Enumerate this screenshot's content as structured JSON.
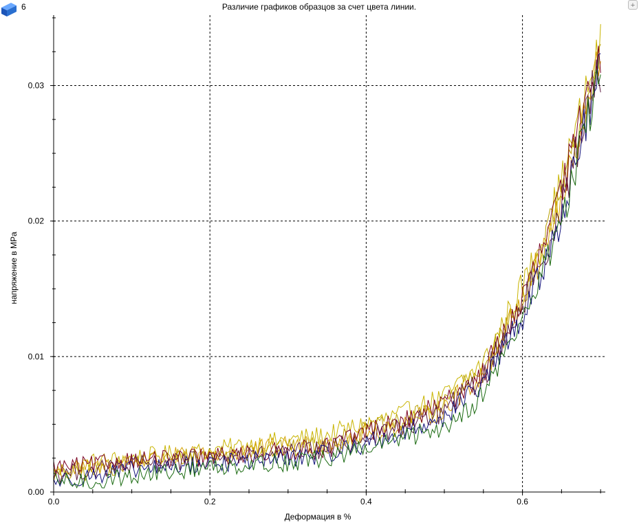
{
  "window": {
    "badge": "6",
    "zoom_button_symbol": "+",
    "corner_icon_name": "blue-cube-icon"
  },
  "colors": {
    "background": "#ffffff",
    "axis": "#000000",
    "grid": "#000000",
    "icon_blue": "#2a6fd0"
  },
  "chart_data": {
    "type": "line",
    "title": "Различие графиков образцов за счет цвета линии.",
    "xlabel": "Деформация в %",
    "ylabel": "напряжение в MPa",
    "xlim": [
      0,
      0.706
    ],
    "ylim": [
      0,
      0.0352
    ],
    "grid": true,
    "legend": "none",
    "x_ticks": [
      0.0,
      0.2,
      0.4,
      0.6
    ],
    "x_tick_labels": [
      "0.0",
      "0.2",
      "0.4",
      "0.6"
    ],
    "x_minor_step": 0.05,
    "y_ticks": [
      0.0,
      0.01,
      0.02,
      0.03
    ],
    "y_tick_labels": [
      "0.00",
      "0.01",
      "0.02",
      "0.03"
    ],
    "y_minor_step": 0.0025,
    "series": [
      {
        "color": "#c8b400",
        "x": [
          0.0,
          0.05,
          0.1,
          0.15,
          0.2,
          0.25,
          0.3,
          0.35,
          0.4,
          0.45,
          0.5,
          0.55,
          0.6,
          0.625,
          0.65,
          0.67,
          0.68,
          0.69,
          0.7
        ],
        "y": [
          0.0015,
          0.0022,
          0.0025,
          0.0028,
          0.003,
          0.0035,
          0.0038,
          0.0042,
          0.005,
          0.0058,
          0.007,
          0.0095,
          0.0152,
          0.0185,
          0.0228,
          0.027,
          0.029,
          0.031,
          0.0328
        ]
      },
      {
        "color": "#b8a000",
        "x": [
          0.0,
          0.05,
          0.1,
          0.15,
          0.2,
          0.25,
          0.3,
          0.35,
          0.4,
          0.45,
          0.5,
          0.55,
          0.6,
          0.625,
          0.65,
          0.67,
          0.68,
          0.69,
          0.7
        ],
        "y": [
          0.0012,
          0.0015,
          0.0022,
          0.0025,
          0.0028,
          0.003,
          0.0032,
          0.0035,
          0.0045,
          0.0052,
          0.0065,
          0.009,
          0.0145,
          0.018,
          0.022,
          0.026,
          0.0285,
          0.0305,
          0.0322
        ]
      },
      {
        "color": "#d4a000",
        "x": [
          0.0,
          0.05,
          0.1,
          0.15,
          0.2,
          0.25,
          0.3,
          0.35,
          0.4,
          0.45,
          0.5,
          0.55,
          0.6,
          0.625,
          0.65,
          0.67,
          0.68,
          0.69,
          0.7
        ],
        "y": [
          0.0014,
          0.0018,
          0.0023,
          0.0026,
          0.0027,
          0.0031,
          0.0034,
          0.0036,
          0.0043,
          0.005,
          0.0062,
          0.0088,
          0.0142,
          0.0176,
          0.0215,
          0.0255,
          0.028,
          0.0302,
          0.0318
        ]
      },
      {
        "color": "#7a0020",
        "x": [
          0.0,
          0.05,
          0.1,
          0.15,
          0.2,
          0.25,
          0.3,
          0.35,
          0.4,
          0.45,
          0.5,
          0.55,
          0.6,
          0.625,
          0.65,
          0.67,
          0.68,
          0.69,
          0.7
        ],
        "y": [
          0.0018,
          0.002,
          0.0024,
          0.0024,
          0.0026,
          0.0028,
          0.003,
          0.0033,
          0.0045,
          0.0052,
          0.0065,
          0.0088,
          0.0142,
          0.0178,
          0.0222,
          0.0262,
          0.0288,
          0.031,
          0.0318
        ]
      },
      {
        "color": "#5a1a40",
        "x": [
          0.0,
          0.05,
          0.1,
          0.15,
          0.2,
          0.25,
          0.3,
          0.35,
          0.4,
          0.45,
          0.5,
          0.55,
          0.6,
          0.625,
          0.65,
          0.67,
          0.68,
          0.69,
          0.7
        ],
        "y": [
          0.0013,
          0.0016,
          0.002,
          0.0022,
          0.0024,
          0.0027,
          0.0029,
          0.0031,
          0.004,
          0.0048,
          0.006,
          0.0085,
          0.0138,
          0.017,
          0.0212,
          0.0252,
          0.0275,
          0.0296,
          0.0312
        ]
      },
      {
        "color": "#10107a",
        "x": [
          0.0,
          0.05,
          0.1,
          0.15,
          0.2,
          0.25,
          0.3,
          0.35,
          0.4,
          0.45,
          0.5,
          0.55,
          0.6,
          0.625,
          0.65,
          0.67,
          0.68,
          0.69,
          0.7
        ],
        "y": [
          0.0008,
          0.0012,
          0.0016,
          0.0019,
          0.0021,
          0.0023,
          0.0025,
          0.0028,
          0.0036,
          0.0044,
          0.0056,
          0.008,
          0.013,
          0.0162,
          0.0205,
          0.0245,
          0.027,
          0.029,
          0.0312
        ]
      },
      {
        "color": "#1a6a10",
        "x": [
          0.0,
          0.05,
          0.1,
          0.15,
          0.2,
          0.25,
          0.3,
          0.35,
          0.4,
          0.45,
          0.5,
          0.55,
          0.6,
          0.625,
          0.65,
          0.67,
          0.68,
          0.69,
          0.7
        ],
        "y": [
          0.0008,
          0.0007,
          0.0012,
          0.0015,
          0.0018,
          0.0021,
          0.0022,
          0.0025,
          0.0032,
          0.004,
          0.0048,
          0.0072,
          0.0128,
          0.016,
          0.0203,
          0.0243,
          0.0268,
          0.0288,
          0.0305
        ]
      }
    ]
  }
}
